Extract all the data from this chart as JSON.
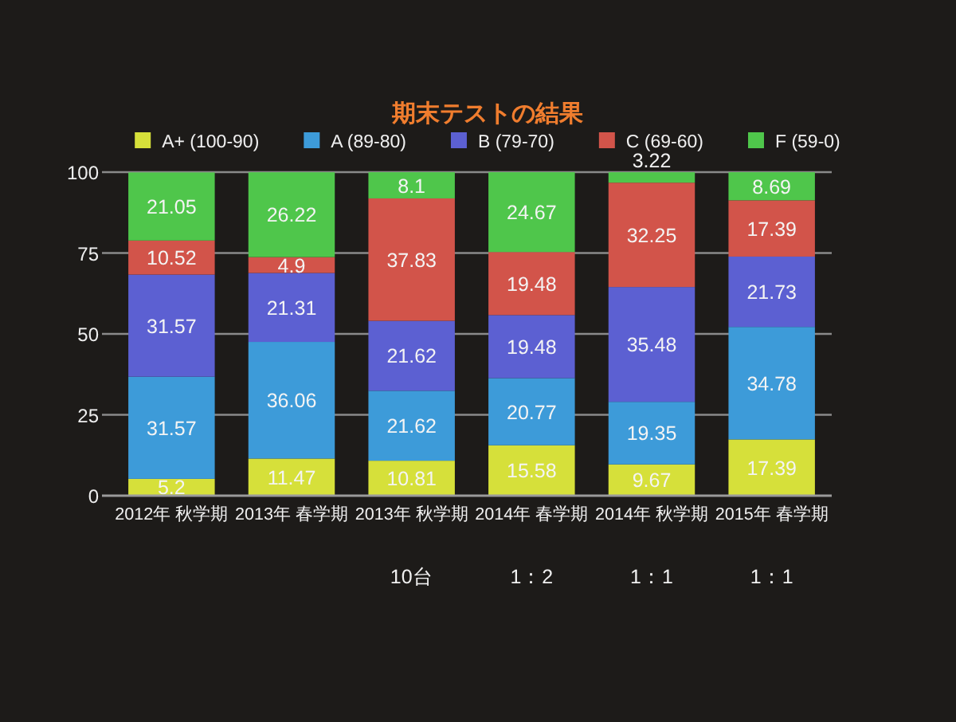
{
  "chart_data": {
    "type": "bar",
    "title": "期末テストの結果",
    "categories": [
      "2012年 秋学期",
      "2013年 春学期",
      "2013年 秋学期",
      "2014年 春学期",
      "2014年 秋学期",
      "2015年 春学期"
    ],
    "series": [
      {
        "name": "A+ (100-90)",
        "color": "#d6e03a",
        "values": [
          5.2,
          11.47,
          10.81,
          15.58,
          9.67,
          17.39
        ]
      },
      {
        "name": "A (89-80)",
        "color": "#3d9bd9",
        "values": [
          31.57,
          36.06,
          21.62,
          20.77,
          19.35,
          34.78
        ]
      },
      {
        "name": "B (79-70)",
        "color": "#5c60d2",
        "values": [
          31.57,
          21.31,
          21.62,
          19.48,
          35.48,
          21.73
        ]
      },
      {
        "name": "C (69-60)",
        "color": "#d2544a",
        "values": [
          10.52,
          4.9,
          37.83,
          19.48,
          32.25,
          17.39
        ]
      },
      {
        "name": "F (59-0)",
        "color": "#4fc64b",
        "values": [
          21.05,
          26.22,
          8.1,
          24.67,
          3.22,
          8.69
        ]
      }
    ],
    "stacked": true,
    "ylim": [
      0,
      100
    ],
    "yticks": [
      0,
      25,
      50,
      75,
      100
    ],
    "grid": "y",
    "legend": "top",
    "data_labels": true,
    "annotations": [
      "10台",
      "1：2",
      "1：1",
      "1：1"
    ]
  }
}
